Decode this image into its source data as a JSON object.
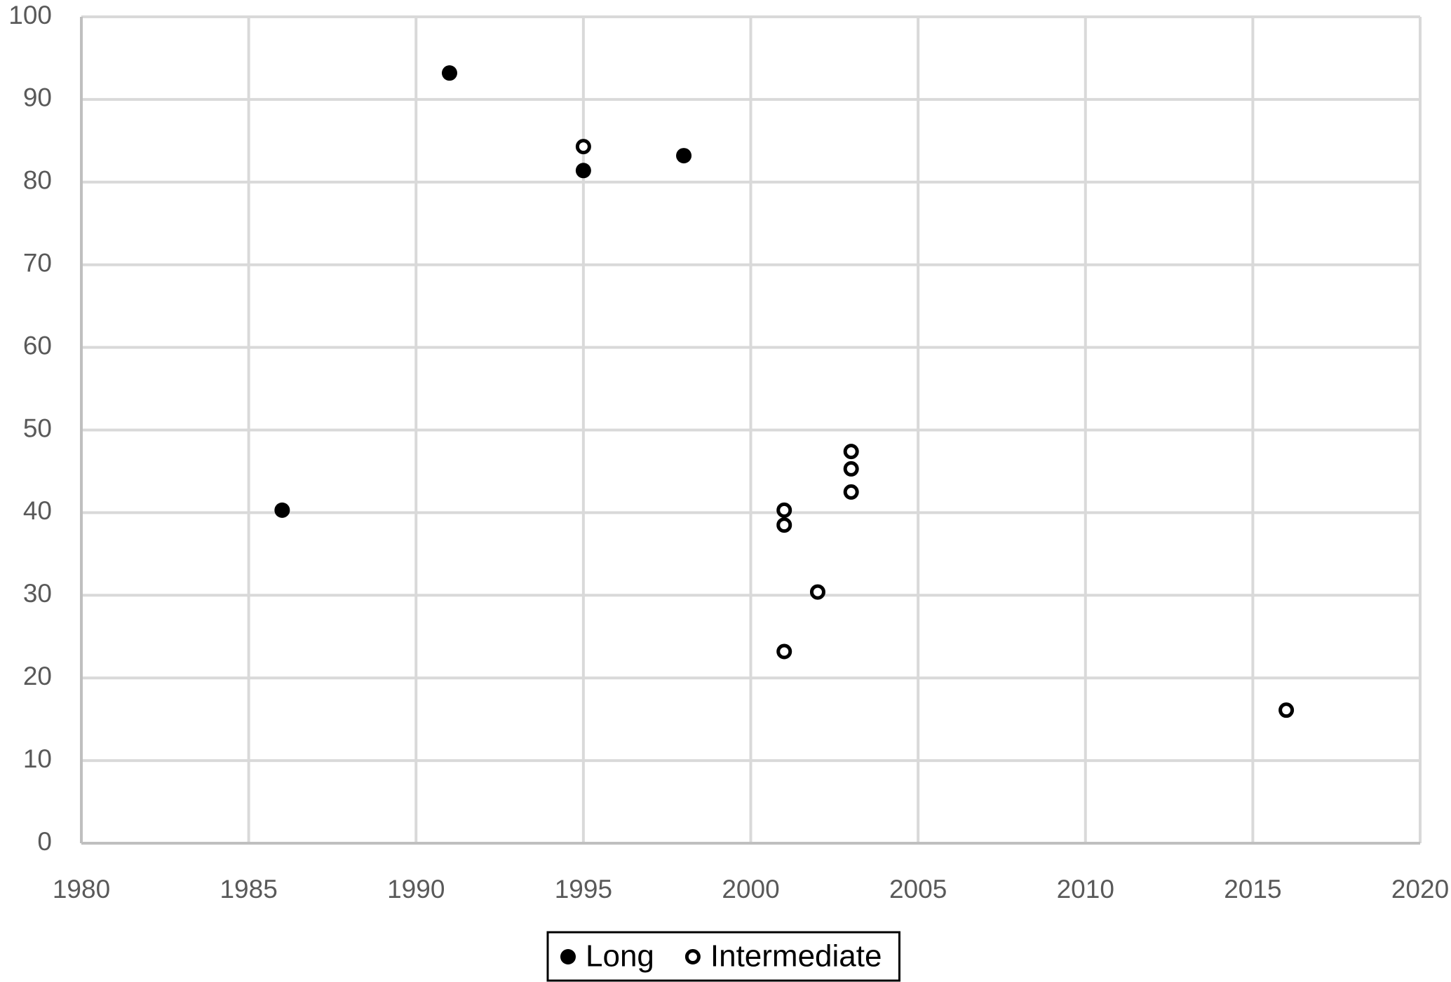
{
  "chart_data": {
    "type": "scatter",
    "series": [
      {
        "name": "Long",
        "color": "#000000",
        "marker": "filled",
        "x": [
          1986,
          1991,
          1995,
          1998
        ],
        "values": [
          40.3,
          93.2,
          81.4,
          83.2
        ]
      },
      {
        "name": "Intermediate",
        "color": "#000000",
        "marker": "hollow",
        "x": [
          1995,
          2001,
          2001,
          2001,
          2002,
          2003,
          2003,
          2003,
          2016
        ],
        "values": [
          84.3,
          40.3,
          38.5,
          23.2,
          30.4,
          47.4,
          45.3,
          42.5,
          16.1
        ]
      }
    ],
    "xlim": [
      1980,
      2020
    ],
    "xticks": [
      1980,
      1985,
      1990,
      1995,
      2000,
      2005,
      2010,
      2015,
      2020
    ],
    "ylim": [
      0,
      100
    ],
    "yticks": [
      0,
      10,
      20,
      30,
      40,
      50,
      60,
      70,
      80,
      90,
      100
    ],
    "grid": true,
    "legend": "bottom"
  }
}
